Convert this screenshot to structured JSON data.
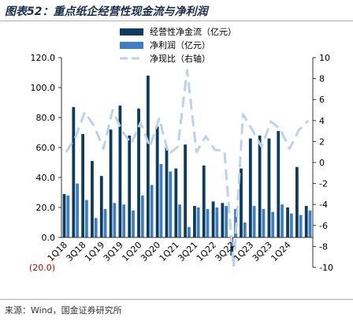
{
  "title": "图表52：重点纸企经营性现金流与净利润",
  "source": "来源：Wind，国金证券研究所",
  "colors": {
    "ocf": "#0d3b5e",
    "np": "#3f7fc1",
    "ratio": "#bcd2ea",
    "neg_label": "#c00000"
  },
  "chart_data": {
    "type": "bar",
    "categories": [
      "1Q18",
      "2Q18",
      "3Q18",
      "4Q18",
      "1Q19",
      "2Q19",
      "3Q19",
      "4Q19",
      "1Q20",
      "2Q20",
      "3Q20",
      "4Q20",
      "1Q21",
      "2Q21",
      "3Q21",
      "4Q21",
      "1Q22",
      "2Q22",
      "3Q22",
      "4Q22",
      "1Q23",
      "2Q23",
      "3Q23",
      "4Q23",
      "1Q24",
      "2Q24",
      "3Q24"
    ],
    "x_tick_labels": [
      "1Q18",
      "3Q18",
      "1Q19",
      "3Q19",
      "1Q20",
      "3Q20",
      "1Q21",
      "3Q21",
      "1Q22",
      "3Q22",
      "1Q23",
      "3Q23",
      "1Q24"
    ],
    "series": [
      {
        "name": "经营性净金流（亿元）",
        "type": "bar",
        "axis": "left",
        "values": [
          29,
          87,
          69,
          51,
          41,
          72,
          88,
          68,
          86,
          108,
          74,
          60,
          46,
          62,
          21,
          48,
          24,
          23,
          -12,
          46,
          66,
          68,
          66,
          71,
          20,
          47,
          21
        ]
      },
      {
        "name": "净利润（亿元）",
        "type": "bar",
        "axis": "left",
        "values": [
          28,
          36,
          25,
          13,
          19,
          23,
          22,
          18,
          28,
          35,
          49,
          44,
          22,
          7,
          20,
          19,
          20,
          21,
          19,
          10,
          21,
          19,
          17,
          22,
          16,
          15,
          18
        ]
      },
      {
        "name": "净现比（右轴）",
        "type": "line",
        "axis": "right",
        "values": [
          1.0,
          2.4,
          4.8,
          3.5,
          1.3,
          5.0,
          3.0,
          1.8,
          3.8,
          1.5,
          4.2,
          0.8,
          1.5,
          8.8,
          1.0,
          2.5,
          1.2,
          1.1,
          -10.0,
          4.6,
          3.1,
          1.5,
          3.9,
          3.2,
          1.3,
          3.1,
          4.0
        ]
      }
    ],
    "yleft_lim": [
      -20,
      120
    ],
    "yleft_ticks": [
      0,
      20,
      40,
      60,
      80,
      100,
      120
    ],
    "yleft_tick_labels": [
      "0.0",
      "20.0",
      "40.0",
      "60.0",
      "80.0",
      "100.0",
      "120.0"
    ],
    "yleft_neg_label": "(20.0)",
    "yright_lim": [
      -10,
      10
    ],
    "yright_ticks": [
      -10,
      -8,
      -6,
      -4,
      -2,
      0,
      2,
      4,
      6,
      8,
      10
    ],
    "legend_position": "top-center",
    "grid": false
  }
}
